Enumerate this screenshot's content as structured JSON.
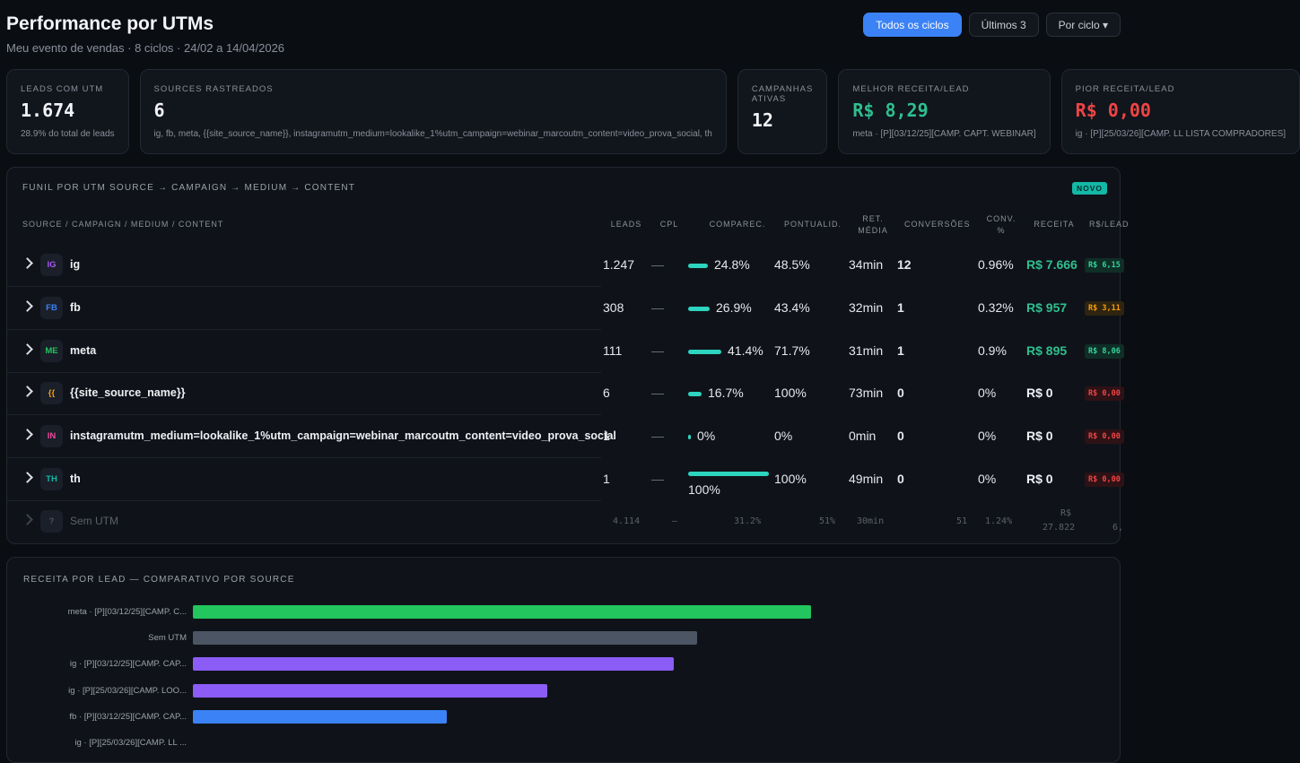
{
  "header": {
    "title": "Performance por UTMs",
    "subtitle": "Meu evento de vendas · 8 ciclos · 24/02 a 14/04/2026",
    "buttons": [
      "Todos os ciclos",
      "Últimos 3",
      "Por ciclo ▾"
    ]
  },
  "cards": [
    {
      "label": "LEADS COM UTM",
      "value": "1.674",
      "note": "28.9% do total de leads"
    },
    {
      "label": "SOURCES RASTREADOS",
      "value": "6",
      "note": "ig, fb, meta, {{site_source_name}}, instagramutm_medium=lookalike_1%utm_campaign=webinar_marcoutm_content=video_prova_social, th"
    },
    {
      "label": "CAMPANHAS ATIVAS",
      "value": "12",
      "note": ""
    },
    {
      "label": "MELHOR RECEITA/LEAD",
      "value": "R$ 8,29",
      "note": "meta · [P][03/12/25][CAMP. CAPT. WEBINAR]"
    },
    {
      "label": "PIOR RECEITA/LEAD",
      "value": "R$ 0,00",
      "note": "ig · [P][25/03/26][CAMP. LL LISTA COMPRADORES]"
    }
  ],
  "funnel": {
    "title": "FUNIL POR UTM SOURCE → CAMPAIGN → MEDIUM → CONTENT",
    "badge": "NOVO",
    "headers": {
      "source": "SOURCE / CAMPAIGN / MEDIUM / CONTENT",
      "leads": "LEADS",
      "cpl": "CPL",
      "comparec": "COMPAREC.",
      "pontualid": "PONTUALID.",
      "ret_media": "RET. MÉDIA",
      "conversoes": "CONVERSÕES",
      "conv_pct": "CONV. %",
      "receita": "RECEITA",
      "rs_lead": "R$/LEAD"
    },
    "rows": [
      {
        "badge": "IG",
        "badge_color": "#a855f7",
        "name": "ig",
        "leads": "1.247",
        "cpl": "—",
        "comparec": "24.8%",
        "comparec_value": 24.8,
        "pontualid": "48.5%",
        "ret": "34min",
        "conversoes": "12",
        "conv_pct": "0.96%",
        "receita": "R$ 7.666",
        "rs_lead": "R$ 6,15",
        "rs_tone": "green"
      },
      {
        "badge": "FB",
        "badge_color": "#3b82f6",
        "name": "fb",
        "leads": "308",
        "cpl": "—",
        "comparec": "26.9%",
        "comparec_value": 26.9,
        "pontualid": "43.4%",
        "ret": "32min",
        "conversoes": "1",
        "conv_pct": "0.32%",
        "receita": "R$ 957",
        "rs_lead": "R$ 3,11",
        "rs_tone": "orange"
      },
      {
        "badge": "ME",
        "badge_color": "#22c55e",
        "name": "meta",
        "leads": "111",
        "cpl": "—",
        "comparec": "41.4%",
        "comparec_value": 41.4,
        "pontualid": "71.7%",
        "ret": "31min",
        "conversoes": "1",
        "conv_pct": "0.9%",
        "receita": "R$ 895",
        "rs_lead": "R$ 8,06",
        "rs_tone": "green"
      },
      {
        "badge": "{{",
        "badge_color": "#f59e0b",
        "name": "{{site_source_name}}",
        "leads": "6",
        "cpl": "—",
        "comparec": "16.7%",
        "comparec_value": 16.7,
        "pontualid": "100%",
        "ret": "73min",
        "conversoes": "0",
        "conv_pct": "0%",
        "receita": "R$ 0",
        "rs_lead": "R$ 0,00",
        "rs_tone": "red"
      },
      {
        "badge": "IN",
        "badge_color": "#ec4899",
        "name": "instagramutm_medium=lookalike_1%utm_campaign=webinar_marcoutm_content=video_prova_social",
        "leads": "1",
        "cpl": "—",
        "comparec": "0%",
        "comparec_value": 0,
        "pontualid": "0%",
        "ret": "0min",
        "conversoes": "0",
        "conv_pct": "0%",
        "receita": "R$ 0",
        "rs_lead": "R$ 0,00",
        "rs_tone": "red"
      },
      {
        "badge": "TH",
        "badge_color": "#14b8a6",
        "name": "th",
        "leads": "1",
        "cpl": "—",
        "comparec": "100%",
        "comparec_value": 100,
        "pontualid": "100%",
        "ret": "49min",
        "conversoes": "0",
        "conv_pct": "0%",
        "receita": "R$ 0",
        "rs_lead": "R$ 0,00",
        "rs_tone": "red"
      }
    ],
    "no_utm": {
      "badge": "?",
      "name": "Sem UTM",
      "leads": "4.114",
      "cpl": "—",
      "comparec": "31.2%",
      "pontualid": "51%",
      "ret": "30min",
      "conversoes": "51",
      "conv_pct": "1.24%",
      "receita_line1": "R$",
      "receita_line2": "27.822",
      "rs_lead": "6,"
    }
  },
  "chart": {
    "title": "RECEITA POR LEAD — COMPARATIVO POR SOURCE"
  },
  "chart_data": {
    "type": "bar",
    "orientation": "horizontal",
    "title": "RECEITA POR LEAD — COMPARATIVO POR SOURCE",
    "categories": [
      "meta · [P][03/12/25][CAMP. C...",
      "Sem UTM",
      "ig · [P][03/12/25][CAMP. CAP...",
      "ig · [P][25/03/26][CAMP. LOO...",
      "fb · [P][03/12/25][CAMP. CAP...",
      "ig · [P][25/03/26][CAMP. LL ..."
    ],
    "values": [
      8.29,
      6.76,
      6.45,
      4.75,
      3.4,
      0
    ],
    "colors": [
      "#22c55e",
      "#4b5563",
      "#8b5cf6",
      "#8b5cf6",
      "#3b82f6",
      "#8b5cf6"
    ],
    "xlim": [
      0,
      8.29
    ]
  }
}
